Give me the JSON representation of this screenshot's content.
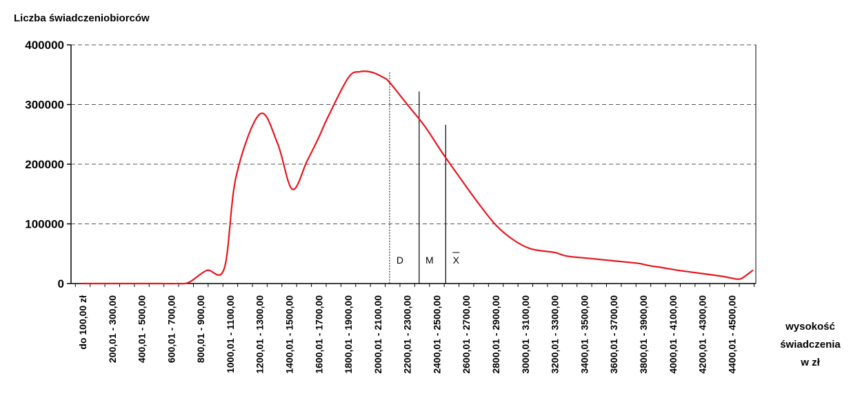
{
  "chart_data": {
    "type": "line",
    "ylabel": "Liczba świadczeniobiorców",
    "xlabel_lines": [
      "wysokość",
      "świadczenia",
      "w zł"
    ],
    "ylim": [
      0,
      400000
    ],
    "yticks": [
      "0",
      "100000",
      "200000",
      "300000",
      "400000"
    ],
    "grid": "horizontal dashed",
    "xtick_labels": [
      "do 100,00 zł",
      "200,01 - 300,00",
      "400,01 - 500,00",
      "600,01 - 700,00",
      "800,01 - 900,00",
      "1000,01 - 1100,00",
      "1200,01 - 1300,00",
      "1400,01 - 1500,00",
      "1600,01 - 1700,00",
      "1800,01 - 1900,00",
      "2000,01 - 2100,00",
      "2200,01 - 2300,00",
      "2400,01 - 2500,00",
      "2600,01 - 2700,00",
      "2800,01 - 2900,00",
      "3000,01 - 3100,00",
      "3200,01 - 3300,00",
      "3400,01 - 3500,00",
      "3600,01 - 3700,00",
      "3800,01 - 3900,00",
      "4000,01 - 4100,00",
      "4200,01 - 4300,00",
      "4400,01 - 4500,00"
    ],
    "series": [
      {
        "color": "#e8141c",
        "x": [
          0,
          0.7,
          1.4,
          2.0,
          2.6,
          3.2,
          3.6,
          4.2,
          4.8,
          5.2,
          6.0,
          6.6,
          7.1,
          7.6,
          8.0,
          8.3,
          9.0,
          9.4,
          9.8,
          10.2,
          10.4,
          11.0,
          11.6,
          12.2,
          12.8,
          13.4,
          14.0,
          14.6,
          15.2,
          16.0,
          16.4,
          17.2,
          18.0,
          18.8,
          19.2,
          19.6,
          20.2,
          20.8,
          21.4,
          21.8,
          22.0,
          22.3,
          22.7
        ],
        "values": [
          0,
          0,
          0,
          0,
          0,
          0,
          2000,
          22000,
          26000,
          180000,
          284000,
          235000,
          158000,
          205000,
          245000,
          278000,
          345000,
          355000,
          354000,
          345000,
          337000,
          300000,
          263000,
          218000,
          176000,
          135000,
          98000,
          73000,
          58000,
          52000,
          46000,
          42000,
          38000,
          34000,
          30000,
          27000,
          22000,
          18000,
          14000,
          11000,
          9000,
          8000,
          22000
        ]
      }
    ],
    "markers": [
      {
        "label": "D",
        "x": 10.4,
        "y": 354000
      },
      {
        "label": "M",
        "x": 11.4,
        "y": 322000
      },
      {
        "label": "X",
        "x": 12.3,
        "y": 266000,
        "overline": true
      }
    ]
  },
  "colors": {
    "line": "#e8141c",
    "axis": "#000000",
    "grid": "#555555"
  }
}
